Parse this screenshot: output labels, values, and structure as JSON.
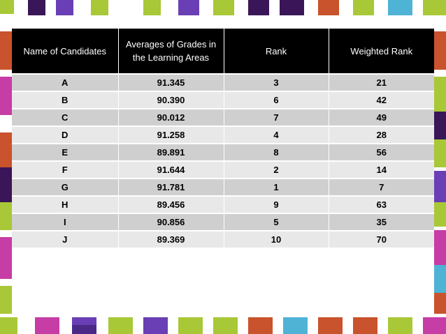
{
  "deco": {
    "colors": {
      "purple": "#3a1658",
      "green": "#a8c837",
      "violet": "#6a3fb5",
      "orange": "#c9532c",
      "magenta": "#c63da6",
      "cyan": "#4fb3d6",
      "dark_violet": "#4a2a86"
    }
  },
  "table": {
    "headers": [
      "Name of Candidates",
      "Averages of Grades in the Learning Areas",
      "Rank",
      "Weighted Rank"
    ],
    "rows": [
      [
        "A",
        "91.345",
        "3",
        "21"
      ],
      [
        "B",
        "90.390",
        "6",
        "42"
      ],
      [
        "C",
        "90.012",
        "7",
        "49"
      ],
      [
        "D",
        "91.258",
        "4",
        "28"
      ],
      [
        "E",
        "89.891",
        "8",
        "56"
      ],
      [
        "F",
        "91.644",
        "2",
        "14"
      ],
      [
        "G",
        "91.781",
        "1",
        "7"
      ],
      [
        "H",
        "89.456",
        "9",
        "63"
      ],
      [
        "I",
        "90.856",
        "5",
        "35"
      ],
      [
        "J",
        "89.369",
        "10",
        "70"
      ]
    ]
  }
}
